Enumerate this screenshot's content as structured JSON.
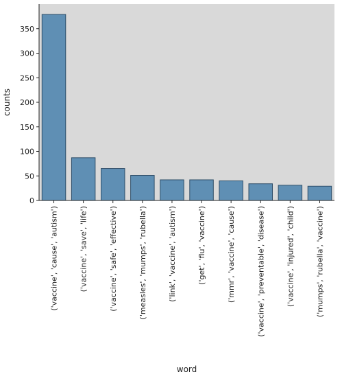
{
  "chart_data": {
    "type": "bar",
    "xlabel": "word",
    "ylabel": "counts",
    "ylim": [
      0,
      400
    ],
    "yticks": [
      0,
      50,
      100,
      150,
      200,
      250,
      300,
      350
    ],
    "grid": false,
    "categories": [
      "('vaccine', 'cause', 'autism')",
      "('vaccine', 'save', 'life')",
      "('vaccine', 'safe', 'effective')",
      "('measles', 'mumps', 'rubella')",
      "('link', 'vaccine', 'autism')",
      "('get', 'flu', 'vaccine')",
      "('mmr', 'vaccine', 'cause')",
      "('vaccine', 'preventable', 'disease')",
      "('vaccine', 'injured', 'child')",
      "('mumps', 'rubella', 'vaccine')"
    ],
    "values": [
      379,
      87,
      65,
      51,
      42,
      42,
      40,
      34,
      31,
      29
    ],
    "colors": {
      "bar_fill": "#5f8fb4",
      "bar_edge": "#2f4f6a",
      "plot_background": "#d9d9d9",
      "axis": "#222222"
    }
  }
}
